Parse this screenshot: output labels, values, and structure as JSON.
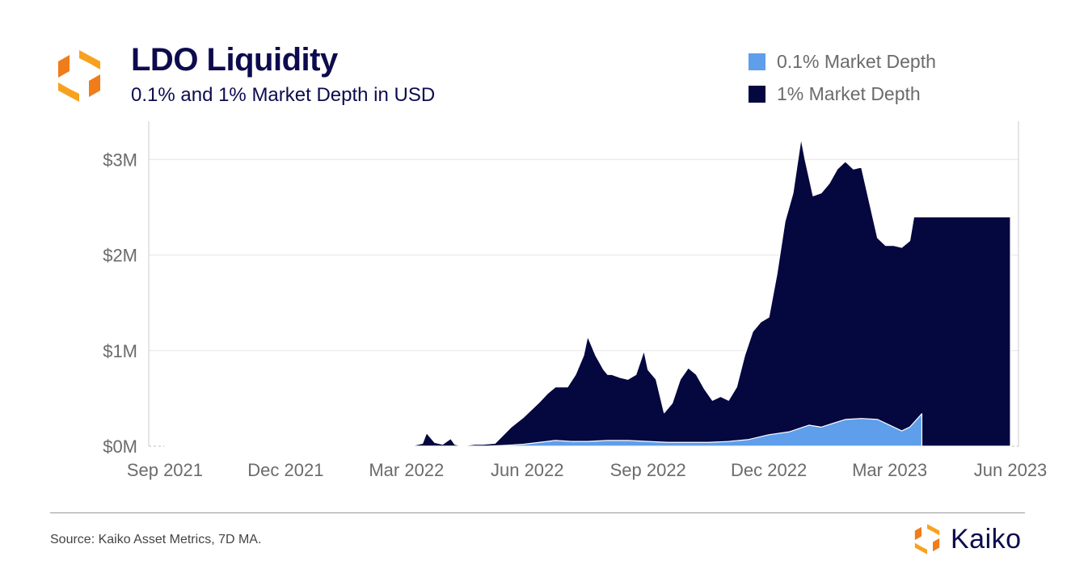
{
  "header": {
    "title": "LDO Liquidity",
    "subtitle": "0.1% and 1% Market Depth in USD",
    "logo_icon": "kaiko-logo-icon"
  },
  "legend": [
    {
      "label": "0.1% Market Depth",
      "color": "#5e9eea"
    },
    {
      "label": "1% Market Depth",
      "color": "#05073f"
    }
  ],
  "footer": {
    "source": "Source: Kaiko Asset Metrics, 7D MA.",
    "brand": "Kaiko"
  },
  "colors": {
    "logo_orange": "#f7931e",
    "logo_orange_dark": "#e8661a",
    "title": "#0d0b4e",
    "grid": "#e6e6e6"
  },
  "chart_data": {
    "type": "area",
    "title": "LDO Liquidity",
    "subtitle": "0.1% and 1% Market Depth in USD",
    "xlabel": "",
    "ylabel": "",
    "x_tick_labels": [
      "Sep 2021",
      "Dec 2021",
      "Mar 2022",
      "Jun 2022",
      "Sep 2022",
      "Dec 2022",
      "Mar 2023",
      "Jun 2023"
    ],
    "y_tick_labels": [
      "$0M",
      "$1M",
      "$2M",
      "$3M"
    ],
    "y_tick_values": [
      0,
      1,
      2,
      3
    ],
    "xlim_months": [
      -0.4,
      21.2
    ],
    "ylim": [
      0,
      3.4
    ],
    "units": "USD millions; x = months since Sep 2021",
    "legend_position": "top-right",
    "series": [
      {
        "name": "1% Market Depth",
        "color": "#05073f",
        "x": [
          0,
          5.4,
          6.2,
          6.4,
          6.5,
          6.7,
          6.9,
          7.1,
          7.2,
          7.3,
          7.5,
          7.7,
          7.9,
          8.2,
          8.6,
          8.9,
          9.1,
          9.3,
          9.5,
          9.7,
          9.9,
          10.0,
          10.2,
          10.4,
          10.5,
          10.7,
          10.9,
          11.0,
          11.1,
          11.3,
          11.5,
          11.7,
          11.9,
          12.0,
          12.2,
          12.4,
          12.6,
          12.8,
          13.0,
          13.2,
          13.4,
          13.6,
          13.8,
          14.0,
          14.2,
          14.4,
          14.6,
          14.8,
          15.0,
          15.2,
          15.4,
          15.6,
          15.8,
          15.9,
          16.1,
          16.3,
          16.5,
          16.7,
          16.9,
          17.1,
          17.3,
          17.5,
          17.7,
          17.9,
          18.1,
          18.3,
          18.5,
          18.6,
          18.7,
          18.8,
          19.0,
          19.2,
          19.4,
          19.5,
          19.7,
          19.8,
          20.0,
          20.2,
          20.4,
          20.6,
          20.8,
          20.9,
          21.0
        ],
        "values": [
          0,
          0,
          0.01,
          0.03,
          0.14,
          0.04,
          0.02,
          0.08,
          0.02,
          0.01,
          0.01,
          0.02,
          0.02,
          0.03,
          0.2,
          0.3,
          0.38,
          0.46,
          0.55,
          0.62,
          0.62,
          0.62,
          0.75,
          0.95,
          1.15,
          0.95,
          0.8,
          0.75,
          0.75,
          0.72,
          0.7,
          0.75,
          1.0,
          0.8,
          0.7,
          0.35,
          0.45,
          0.7,
          0.82,
          0.75,
          0.6,
          0.48,
          0.52,
          0.48,
          0.62,
          0.95,
          1.2,
          1.3,
          1.35,
          1.8,
          2.35,
          2.65,
          3.22,
          3.0,
          2.62,
          2.65,
          2.75,
          2.9,
          2.98,
          2.9,
          2.92,
          2.55,
          2.18,
          2.1,
          2.1,
          2.08,
          2.15,
          2.4,
          2.4,
          2.4,
          2.4,
          2.4,
          2.4,
          2.4,
          2.4,
          2.4,
          2.4,
          2.4,
          2.4,
          2.4,
          2.4,
          2.4,
          2.4
        ]
      },
      {
        "name": "0.1% Market Depth",
        "color": "#5e9eea",
        "x": [
          0,
          8.0,
          8.5,
          8.9,
          9.3,
          9.7,
          10.1,
          10.5,
          11.0,
          11.5,
          12.0,
          12.5,
          13.0,
          13.5,
          14.0,
          14.5,
          15.0,
          15.5,
          16.0,
          16.3,
          16.6,
          16.9,
          17.3,
          17.7,
          18.1,
          18.3,
          18.5,
          18.8
        ],
        "values": [
          0,
          0,
          0.01,
          0.02,
          0.04,
          0.06,
          0.05,
          0.05,
          0.06,
          0.06,
          0.05,
          0.04,
          0.04,
          0.04,
          0.05,
          0.07,
          0.12,
          0.15,
          0.22,
          0.2,
          0.24,
          0.28,
          0.29,
          0.28,
          0.2,
          0.16,
          0.2,
          0.34
        ]
      }
    ]
  }
}
